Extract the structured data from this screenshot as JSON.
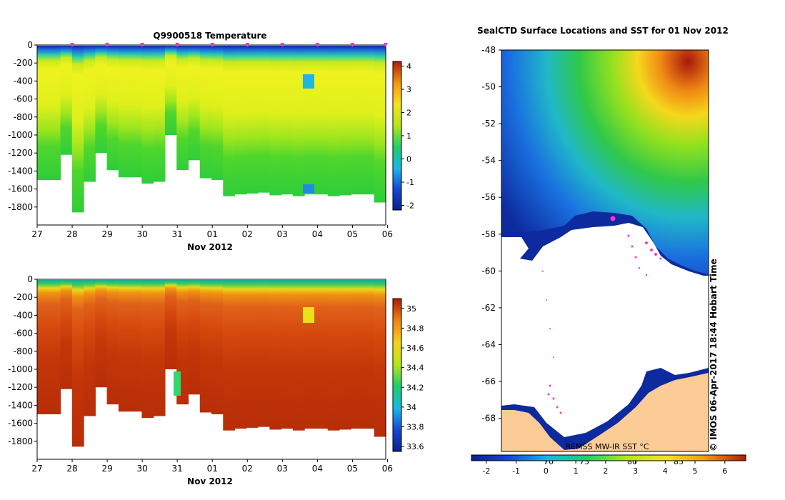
{
  "chart_data": [
    {
      "type": "heatmap",
      "title": "Q9900518  Temperature",
      "xlabel": "Nov 2012",
      "ylabel": "",
      "x_tick_labels": [
        "27",
        "28",
        "29",
        "30",
        "31",
        "01",
        "02",
        "03",
        "04",
        "05",
        "06"
      ],
      "y_tick_labels": [
        "0",
        "-200",
        "-400",
        "-600",
        "-800",
        "-1000",
        "-1200",
        "-1400",
        "-1600",
        "-1800"
      ],
      "y_ticks": [
        0,
        -200,
        -400,
        -600,
        -800,
        -1000,
        -1200,
        -1400,
        -1600,
        -1800
      ],
      "xlim": [
        0,
        9.95
      ],
      "ylim": [
        -2000,
        0
      ],
      "profile_markers_x": [
        1,
        2,
        3,
        4,
        5,
        6,
        7,
        8,
        9,
        9.95
      ],
      "profile_depth_bottom": [
        -1500,
        -1500,
        -1220,
        -1860,
        -1520,
        -1200,
        -1390,
        -1470,
        -1470,
        -1540,
        -1520,
        -1000,
        -1390,
        -1280,
        -1480,
        -1500,
        -1680,
        -1660,
        -1650,
        -1640,
        -1670,
        -1660,
        -1680,
        -1660,
        -1660,
        -1680,
        -1670,
        -1660,
        -1660,
        -1750
      ],
      "colorbar": {
        "label": "",
        "tick_labels": [
          "4",
          "3",
          "2",
          "1",
          "0",
          "-1",
          "-2"
        ],
        "ticks": [
          4,
          3,
          2,
          1,
          0,
          -1,
          -2
        ],
        "range": [
          -2.2,
          4.2
        ]
      }
    },
    {
      "type": "heatmap",
      "title": "",
      "xlabel": "Nov 2012",
      "ylabel": "",
      "x_tick_labels": [
        "27",
        "28",
        "29",
        "30",
        "31",
        "01",
        "02",
        "03",
        "04",
        "05",
        "06"
      ],
      "y_tick_labels": [
        "0",
        "-200",
        "-400",
        "-600",
        "-800",
        "-1000",
        "-1200",
        "-1400",
        "-1600",
        "-1800"
      ],
      "y_ticks": [
        0,
        -200,
        -400,
        -600,
        -800,
        -1000,
        -1200,
        -1400,
        -1600,
        -1800
      ],
      "xlim": [
        0,
        9.95
      ],
      "ylim": [
        -2000,
        0
      ],
      "profile_depth_bottom": [
        -1500,
        -1500,
        -1220,
        -1860,
        -1520,
        -1200,
        -1390,
        -1470,
        -1470,
        -1540,
        -1520,
        -1000,
        -1390,
        -1280,
        -1480,
        -1500,
        -1680,
        -1660,
        -1650,
        -1640,
        -1670,
        -1660,
        -1680,
        -1660,
        -1660,
        -1680,
        -1670,
        -1660,
        -1660,
        -1750
      ],
      "colorbar": {
        "label": "",
        "tick_labels": [
          "35",
          "34.8",
          "34.6",
          "34.4",
          "34.2",
          "34",
          "33.8",
          "33.6"
        ],
        "ticks": [
          35,
          34.8,
          34.6,
          34.4,
          34.2,
          34,
          33.8,
          33.6
        ],
        "range": [
          33.55,
          35.1
        ]
      }
    },
    {
      "type": "heatmap",
      "title": "SealCTD Surface Locations and SST for 01 Nov 2012",
      "xlabel": "",
      "ylabel": "",
      "y_tick_labels": [
        "-48",
        "-50",
        "-52",
        "-54",
        "-56",
        "-58",
        "-60",
        "-62",
        "-64",
        "-66",
        "-68"
      ],
      "y_ticks": [
        -48,
        -50,
        -52,
        -54,
        -56,
        -58,
        -60,
        -62,
        -64,
        -66,
        -68
      ],
      "ylim": [
        -69.8,
        -48
      ],
      "x_tick_labels_top_row": [
        "70",
        "75",
        "80",
        "85"
      ],
      "colorbar": {
        "label": "REMSS MW-IR SST °C",
        "tick_labels": [
          "-2",
          "-1",
          "0",
          "1",
          "2",
          "3",
          "4",
          "5",
          "6"
        ],
        "ticks": [
          -2,
          -1,
          0,
          1,
          2,
          3,
          4,
          5,
          6
        ],
        "range": [
          -2.5,
          6.7
        ]
      },
      "credit": "© IMOS 06-Apr-2017 18:44 Hobart Time"
    }
  ]
}
